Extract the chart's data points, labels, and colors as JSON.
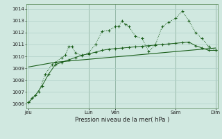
{
  "bg_color": "#d0e8e0",
  "grid_color": "#b0d0c8",
  "line_color": "#1a5e1a",
  "title": "Pression niveau de la mer( hPa )",
  "ylabel_ticks": [
    1006,
    1007,
    1008,
    1009,
    1010,
    1011,
    1012,
    1013,
    1014
  ],
  "ylim": [
    1005.6,
    1014.4
  ],
  "xtick_labels": [
    "Jeu",
    "",
    "",
    "Lun",
    "Ven",
    "",
    "",
    "Sam",
    "",
    "Dim"
  ],
  "xtick_pos": [
    0,
    3,
    6,
    9,
    13,
    16,
    19,
    22,
    25,
    28
  ],
  "xlim": [
    -0.3,
    28.3
  ],
  "line1_x": [
    0,
    0.5,
    1.5,
    2.5,
    3.5,
    4,
    5,
    5.5,
    6,
    6.5,
    7,
    8,
    9,
    10,
    11,
    12,
    13,
    13.5,
    14,
    14.5,
    15,
    16,
    17,
    18,
    19,
    20,
    21,
    22,
    23,
    24,
    25,
    26,
    27,
    28
  ],
  "line1_y": [
    1006.1,
    1006.5,
    1007.0,
    1008.5,
    1009.3,
    1009.5,
    1009.9,
    1010.1,
    1010.8,
    1010.85,
    1010.3,
    1010.05,
    1010.3,
    1011.0,
    1012.1,
    1012.2,
    1012.5,
    1012.55,
    1013.0,
    1012.7,
    1012.5,
    1011.7,
    1011.5,
    1010.4,
    1011.0,
    1012.5,
    1012.9,
    1013.2,
    1013.8,
    1013.0,
    1012.0,
    1011.5,
    1010.8,
    1010.5
  ],
  "line2_x": [
    0,
    1,
    2,
    3,
    4,
    5,
    6,
    7,
    8,
    9,
    10,
    11,
    12,
    13,
    14,
    15,
    16,
    17,
    18,
    19,
    20,
    21,
    22,
    23,
    24,
    25,
    26,
    27,
    28
  ],
  "line2_y": [
    1009.1,
    1009.2,
    1009.3,
    1009.4,
    1009.5,
    1009.55,
    1009.6,
    1009.65,
    1009.7,
    1009.75,
    1009.8,
    1009.85,
    1009.9,
    1009.95,
    1010.0,
    1010.05,
    1010.1,
    1010.15,
    1010.2,
    1010.25,
    1010.3,
    1010.35,
    1010.4,
    1010.45,
    1010.5,
    1010.55,
    1010.6,
    1010.65,
    1010.7
  ],
  "line3_x": [
    0,
    1,
    2,
    3,
    4,
    5,
    6,
    7,
    8,
    9,
    10,
    11,
    12,
    13,
    14,
    15,
    16,
    17,
    18,
    19,
    20,
    21,
    22,
    23,
    24,
    25,
    26,
    27,
    28
  ],
  "line3_y": [
    1006.1,
    1006.7,
    1007.5,
    1008.5,
    1009.3,
    1009.5,
    1009.7,
    1009.9,
    1010.1,
    1010.2,
    1010.35,
    1010.5,
    1010.6,
    1010.65,
    1010.7,
    1010.75,
    1010.8,
    1010.85,
    1010.9,
    1010.95,
    1011.0,
    1011.05,
    1011.1,
    1011.15,
    1011.2,
    1010.9,
    1010.7,
    1010.5,
    1010.5
  ],
  "vline_x": [
    9,
    13,
    22,
    28
  ],
  "figsize": [
    3.2,
    2.0
  ],
  "dpi": 100
}
